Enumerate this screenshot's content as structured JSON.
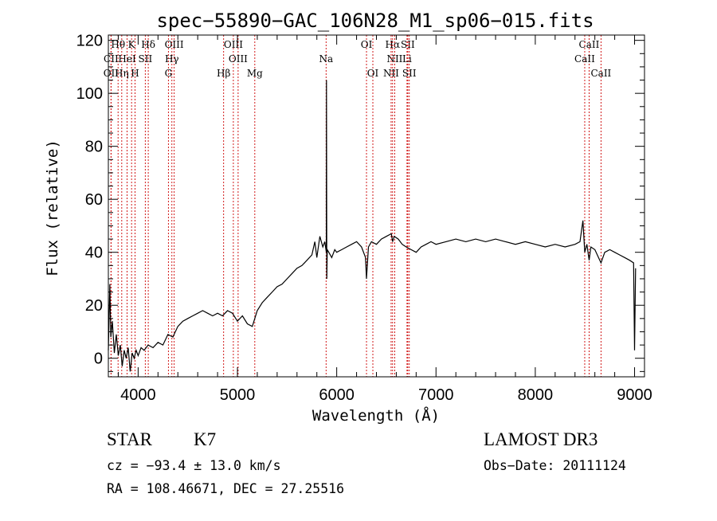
{
  "chart_data": {
    "type": "line",
    "title": "spec−55890−GAC_106N28_M1_sp06−015.fits",
    "xlabel": "Wavelength (Å)",
    "ylabel": "Flux (relative)",
    "xlim": [
      3700,
      9100
    ],
    "ylim": [
      -7,
      122
    ],
    "xticks": [
      4000,
      5000,
      6000,
      7000,
      8000,
      9000
    ],
    "yticks": [
      0,
      20,
      40,
      60,
      80,
      100,
      120
    ],
    "grid": false,
    "series": [
      {
        "name": "flux",
        "x": [
          3700,
          3715,
          3725,
          3740,
          3760,
          3780,
          3800,
          3820,
          3840,
          3860,
          3880,
          3900,
          3920,
          3940,
          3960,
          3980,
          4000,
          4030,
          4060,
          4100,
          4150,
          4200,
          4250,
          4300,
          4350,
          4400,
          4450,
          4500,
          4550,
          4600,
          4650,
          4700,
          4750,
          4800,
          4850,
          4900,
          4950,
          5000,
          5050,
          5100,
          5150,
          5200,
          5250,
          5300,
          5350,
          5400,
          5450,
          5500,
          5550,
          5600,
          5650,
          5700,
          5750,
          5780,
          5800,
          5830,
          5860,
          5880,
          5895,
          5897,
          5900,
          5905,
          5920,
          5950,
          5980,
          6000,
          6050,
          6100,
          6150,
          6200,
          6250,
          6290,
          6300,
          6320,
          6350,
          6400,
          6450,
          6500,
          6550,
          6563,
          6580,
          6620,
          6660,
          6700,
          6750,
          6800,
          6850,
          6900,
          6950,
          7000,
          7100,
          7200,
          7300,
          7400,
          7500,
          7600,
          7700,
          7800,
          7900,
          8000,
          8100,
          8200,
          8300,
          8400,
          8450,
          8480,
          8498,
          8520,
          8542,
          8560,
          8600,
          8662,
          8700,
          8750,
          8800,
          8850,
          8900,
          8950,
          8990,
          9000,
          9010
        ],
        "values": [
          3,
          28,
          8,
          14,
          2,
          9,
          1,
          5,
          -3,
          3,
          0,
          4,
          -5,
          2,
          0,
          3,
          1,
          4,
          3,
          5,
          4,
          6,
          5,
          9,
          8,
          12,
          14,
          15,
          16,
          17,
          18,
          17,
          16,
          17,
          16,
          18,
          17,
          14,
          16,
          13,
          12,
          18,
          21,
          23,
          25,
          27,
          28,
          30,
          32,
          34,
          35,
          37,
          39,
          44,
          38,
          46,
          42,
          44,
          40,
          105,
          30,
          41,
          40,
          38,
          41,
          40,
          41,
          42,
          43,
          44,
          42,
          38,
          30,
          42,
          44,
          43,
          45,
          46,
          47,
          44,
          46,
          45,
          43,
          42,
          41,
          40,
          42,
          43,
          44,
          43,
          44,
          45,
          44,
          45,
          44,
          45,
          44,
          43,
          44,
          43,
          42,
          43,
          42,
          43,
          44,
          52,
          40,
          43,
          37,
          42,
          41,
          36,
          40,
          41,
          40,
          39,
          38,
          37,
          36,
          3,
          34
        ]
      }
    ],
    "emission_lines": [
      {
        "label": "Hθ",
        "wavelength": 3798,
        "row": 1
      },
      {
        "label": "K",
        "wavelength": 3934,
        "row": 1
      },
      {
        "label": "Hδ",
        "wavelength": 4102,
        "row": 1
      },
      {
        "label": "OIII",
        "wavelength": 4363,
        "row": 1
      },
      {
        "label": "OIII",
        "wavelength": 4959,
        "row": 1
      },
      {
        "label": "OI",
        "wavelength": 6300,
        "row": 1
      },
      {
        "label": "Hα",
        "wavelength": 6563,
        "row": 1
      },
      {
        "label": "SII",
        "wavelength": 6716,
        "row": 1
      },
      {
        "label": "CaII",
        "wavelength": 8542,
        "row": 1
      },
      {
        "label": "CII",
        "wavelength": 3727,
        "row": 2
      },
      {
        "label": "HeI",
        "wavelength": 3889,
        "row": 2
      },
      {
        "label": "SII",
        "wavelength": 4072,
        "row": 2
      },
      {
        "label": "Hγ",
        "wavelength": 4340,
        "row": 2
      },
      {
        "label": "OIII",
        "wavelength": 5007,
        "row": 2
      },
      {
        "label": "NII",
        "wavelength": 6584,
        "row": 2
      },
      {
        "label": "Li",
        "wavelength": 6708,
        "row": 2
      },
      {
        "label": "CaII",
        "wavelength": 8498,
        "row": 2
      },
      {
        "label": "OII",
        "wavelength": 3727,
        "row": 3
      },
      {
        "label": "Hη",
        "wavelength": 3835,
        "row": 3
      },
      {
        "label": "H",
        "wavelength": 3969,
        "row": 3
      },
      {
        "label": "G",
        "wavelength": 4305,
        "row": 3
      },
      {
        "label": "Hβ",
        "wavelength": 4861,
        "row": 3
      },
      {
        "label": "Mg",
        "wavelength": 5175,
        "row": 3
      },
      {
        "label": "Na",
        "wavelength": 5893,
        "row": 2
      },
      {
        "label": "OI",
        "wavelength": 6364,
        "row": 3
      },
      {
        "label": "NII",
        "wavelength": 6548,
        "row": 3
      },
      {
        "label": "SII",
        "wavelength": 6731,
        "row": 3
      },
      {
        "label": "CaII",
        "wavelength": 8662,
        "row": 3
      }
    ],
    "colors": {
      "spectrum": "#000000",
      "lines": "#cc0000"
    }
  },
  "info": {
    "class": "STAR",
    "subclass": "K7",
    "survey": "LAMOST DR3",
    "cz": "cz = −93.4 ± 13.0 km/s",
    "obs_date": "Obs−Date: 20111124",
    "coords": "RA = 108.46671, DEC =  27.25516"
  }
}
